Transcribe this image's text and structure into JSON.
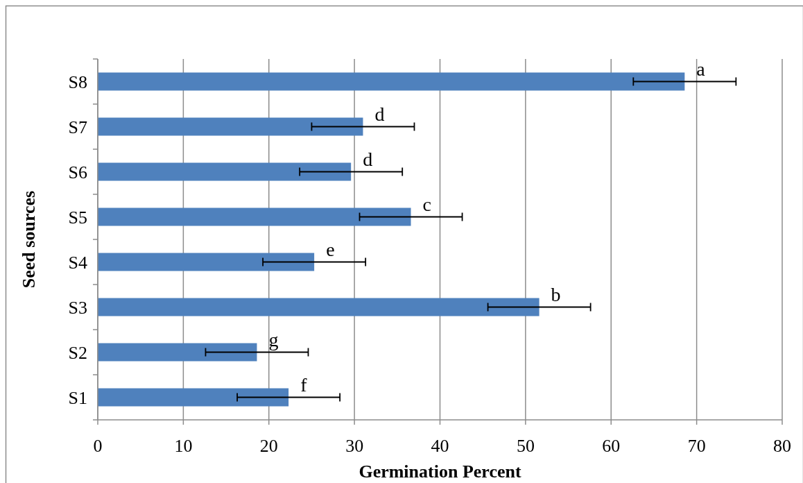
{
  "chart_data": {
    "type": "bar",
    "orientation": "horizontal",
    "categories": [
      "S8",
      "S7",
      "S6",
      "S5",
      "S4",
      "S3",
      "S2",
      "S1"
    ],
    "values": [
      68.6,
      31.0,
      29.6,
      36.6,
      25.3,
      51.6,
      18.6,
      22.3
    ],
    "errors": [
      6,
      6,
      6,
      6,
      6,
      6,
      6,
      6
    ],
    "color": "#4f81bd",
    "xlabel": "Germination Percent",
    "ylabel": "Seed sources",
    "xlim": [
      0,
      80
    ],
    "xticks": [
      0,
      10,
      20,
      30,
      40,
      50,
      60,
      70,
      80
    ],
    "grid": "x",
    "annotations": [
      {
        "text": "a",
        "x": 68.6,
        "y": "S8"
      },
      {
        "text": "d",
        "x": 31.0,
        "y": "S7"
      },
      {
        "text": "d",
        "x": 29.6,
        "y": "S6"
      },
      {
        "text": "c",
        "x": 36.6,
        "y": "S5"
      },
      {
        "text": "e",
        "x": 25.3,
        "y": "S4"
      },
      {
        "text": "b",
        "x": 51.6,
        "y": "S3"
      },
      {
        "text": "g",
        "x": 18.6,
        "y": "S2"
      },
      {
        "text": "f",
        "x": 22.3,
        "y": "S1"
      }
    ]
  }
}
